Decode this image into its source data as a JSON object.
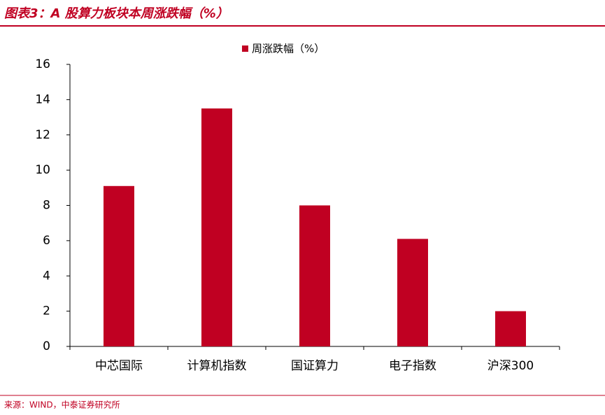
{
  "chart_data": {
    "type": "bar",
    "title": "图表3：A 股算力板块本周涨跌幅（%）",
    "source": "来源：WIND，中泰证券研究所",
    "categories": [
      "中芯国际",
      "计算机指数",
      "国证算力",
      "电子指数",
      "沪深300"
    ],
    "series": [
      {
        "name": "周涨跌幅（%）",
        "color": "#c00022",
        "values": [
          9.1,
          13.5,
          8.0,
          6.1,
          2.0
        ]
      }
    ],
    "ylim": [
      0,
      16
    ],
    "yticks": [
      0,
      2,
      4,
      6,
      8,
      10,
      12,
      14,
      16
    ],
    "grid": false,
    "legend": "top"
  }
}
